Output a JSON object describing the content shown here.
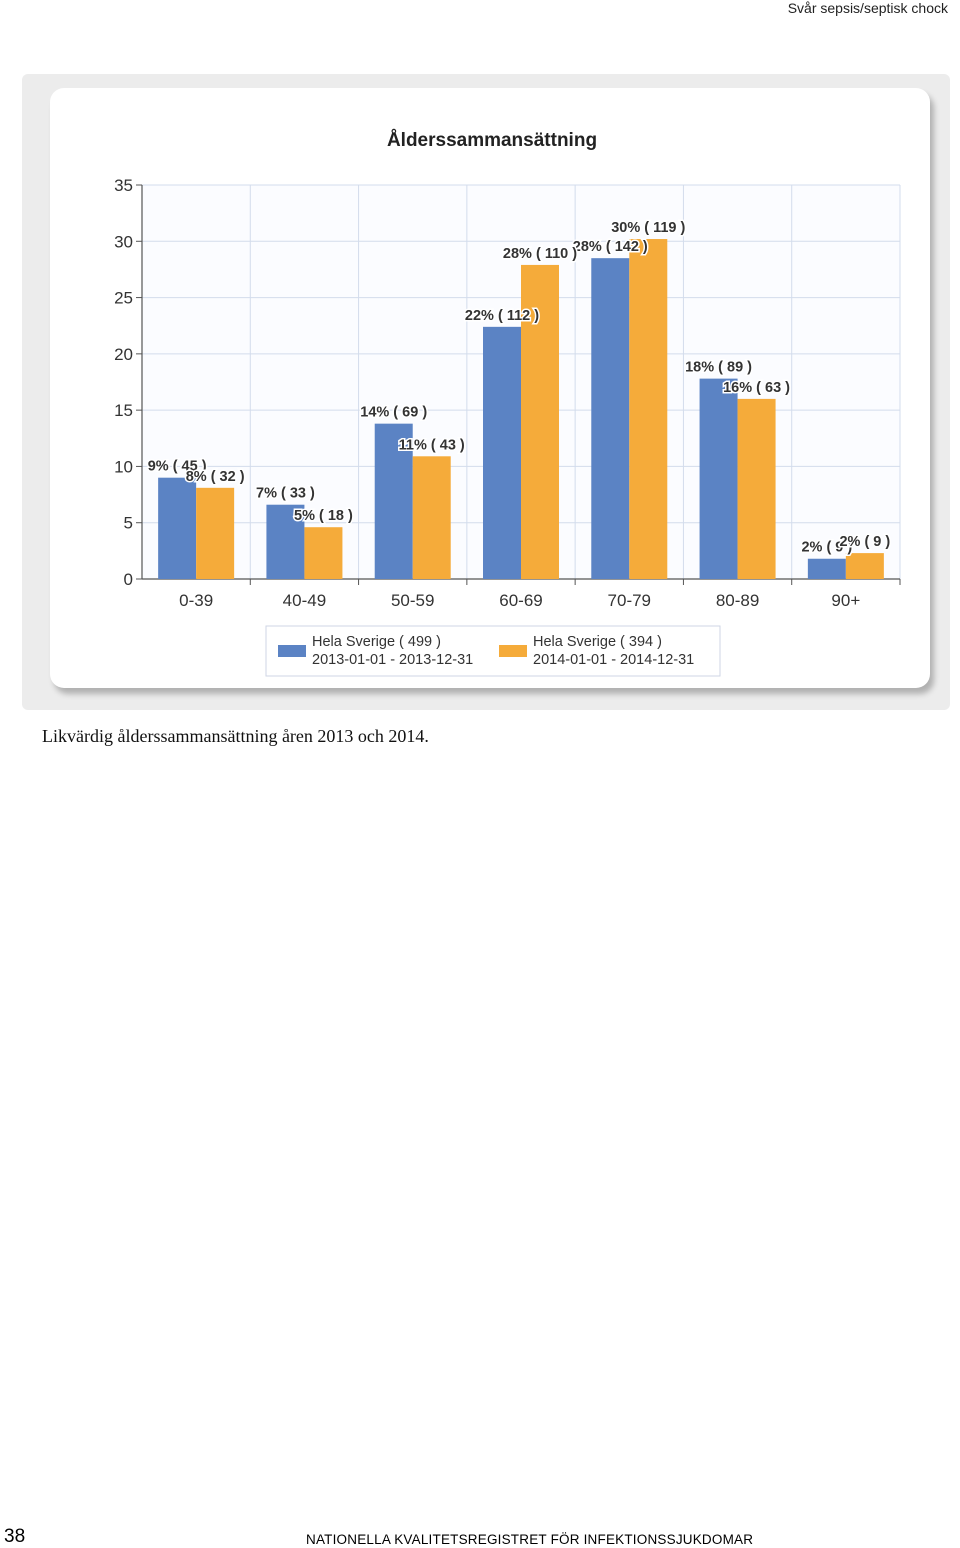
{
  "page": {
    "running_head": "Svår sepsis/septisk chock",
    "caption": "Likvärdig ålderssammansättning åren 2013 och 2014.",
    "page_number": "38",
    "footer_org": "NATIONELLA KVALITETSREGISTRET FÖR INFEKTIONSSJUKDOMAR"
  },
  "colors": {
    "series_2013": "#5b83c4",
    "series_2014": "#f5ab3a"
  },
  "chart_data": {
    "type": "bar",
    "title": "Ålderssammansättning",
    "categories": [
      "0-39",
      "40-49",
      "50-59",
      "60-69",
      "70-79",
      "80-89",
      "90+"
    ],
    "series": [
      {
        "name": "Hela Sverige  ( 499 )",
        "period": "2013-01-01 - 2013-12-31",
        "values": [
          9.0,
          6.6,
          13.8,
          22.4,
          28.5,
          17.8,
          1.8
        ],
        "labels": [
          "9% ( 45 )",
          "7% ( 33 )",
          "14% ( 69 )",
          "22% ( 112 )",
          "28% ( 142 )",
          "18% ( 89 )",
          "2% ( 9 )"
        ]
      },
      {
        "name": "Hela Sverige  ( 394 )",
        "period": "2014-01-01 - 2014-12-31",
        "values": [
          8.1,
          4.6,
          10.9,
          27.9,
          30.2,
          16.0,
          2.3
        ],
        "labels": [
          "8% ( 32 )",
          "5% ( 18 )",
          "11% ( 43 )",
          "28% ( 110 )",
          "30% ( 119 )",
          "16% ( 63 )",
          "2% ( 9 )"
        ]
      }
    ],
    "ylim": [
      0,
      35
    ],
    "yticks": [
      0,
      5,
      10,
      15,
      20,
      25,
      30,
      35
    ],
    "xlabel": "",
    "ylabel": "",
    "grid": true,
    "legend": "bottom-center"
  }
}
